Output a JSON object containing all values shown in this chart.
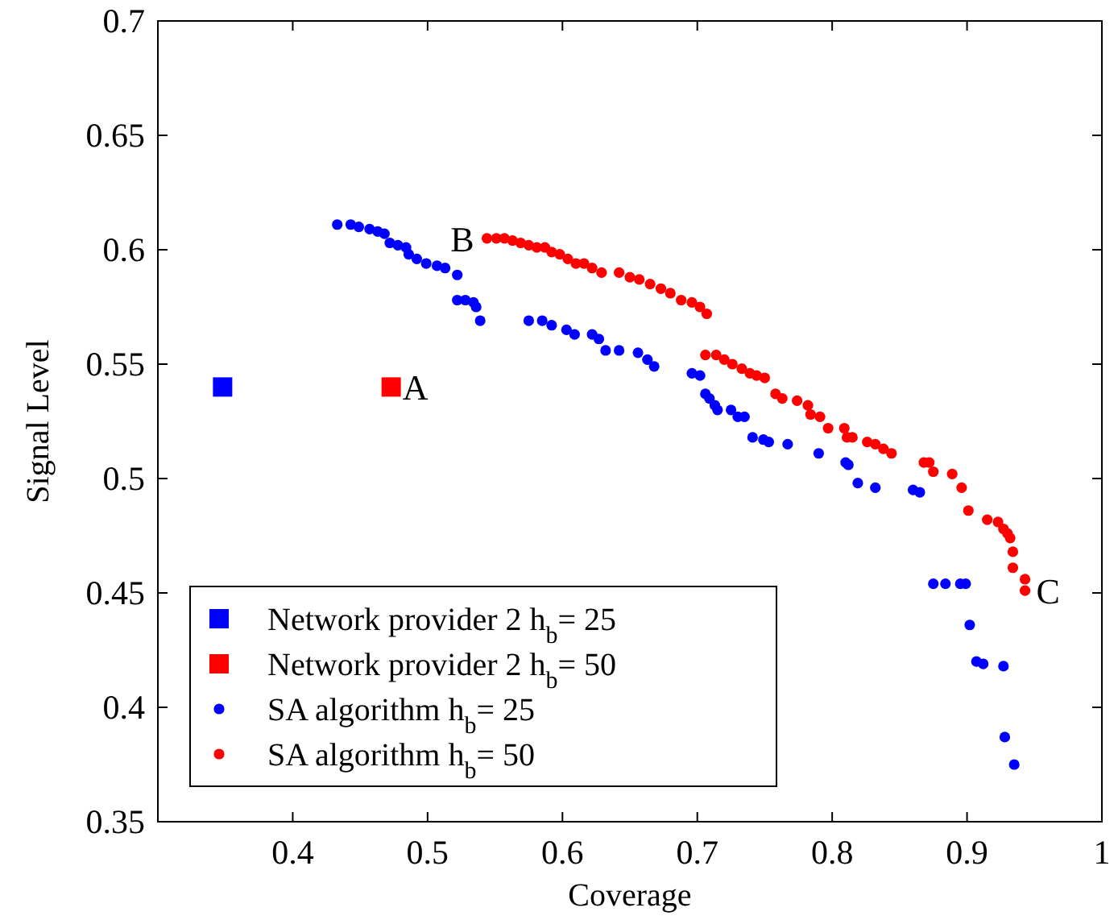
{
  "chart_data": {
    "type": "scatter",
    "xlabel": "Coverage",
    "ylabel": "Signal Level",
    "xlim": [
      0.3,
      1.0
    ],
    "ylim": [
      0.35,
      0.7
    ],
    "xticks": [
      0.4,
      0.5,
      0.6,
      0.7,
      0.8,
      0.9,
      1
    ],
    "yticks": [
      0.35,
      0.4,
      0.45,
      0.5,
      0.55,
      0.6,
      0.65,
      0.7
    ],
    "grid": false,
    "legend": "bottom left",
    "annotations": [
      {
        "text": "A",
        "x": 0.473,
        "y": 0.54
      },
      {
        "text": "B",
        "x": 0.544,
        "y": 0.605
      },
      {
        "text": "C",
        "x": 0.943,
        "y": 0.451
      }
    ],
    "series": [
      {
        "name": "Network provider 2 h$_{b}$= 25",
        "color": "#0000ff",
        "marker": "square",
        "x": [
          0.348
        ],
        "values": [
          0.54
        ]
      },
      {
        "name": "Network provider 2 h$_{b}$= 50",
        "color": "#ff0000",
        "marker": "square",
        "x": [
          0.473
        ],
        "values": [
          0.54
        ]
      },
      {
        "name": "SA algorithm h$_{b}$= 25",
        "color": "#0000ff",
        "marker": "circle",
        "x": [
          0.433,
          0.443,
          0.449,
          0.457,
          0.463,
          0.468,
          0.472,
          0.478,
          0.484,
          0.486,
          0.492,
          0.499,
          0.507,
          0.513,
          0.522,
          0.522,
          0.528,
          0.534,
          0.536,
          0.539,
          0.575,
          0.585,
          0.592,
          0.603,
          0.609,
          0.622,
          0.627,
          0.632,
          0.642,
          0.656,
          0.663,
          0.668,
          0.696,
          0.702,
          0.706,
          0.709,
          0.713,
          0.715,
          0.725,
          0.73,
          0.735,
          0.741,
          0.749,
          0.753,
          0.767,
          0.79,
          0.81,
          0.812,
          0.819,
          0.832,
          0.86,
          0.865,
          0.875,
          0.884,
          0.895,
          0.899,
          0.902,
          0.907,
          0.912,
          0.927,
          0.928,
          0.935
        ],
        "values": [
          0.611,
          0.611,
          0.61,
          0.609,
          0.608,
          0.607,
          0.603,
          0.602,
          0.601,
          0.598,
          0.596,
          0.594,
          0.593,
          0.592,
          0.589,
          0.578,
          0.578,
          0.577,
          0.575,
          0.569,
          0.569,
          0.569,
          0.567,
          0.565,
          0.563,
          0.563,
          0.561,
          0.556,
          0.556,
          0.555,
          0.552,
          0.549,
          0.546,
          0.545,
          0.537,
          0.535,
          0.532,
          0.53,
          0.53,
          0.527,
          0.527,
          0.518,
          0.517,
          0.516,
          0.515,
          0.511,
          0.507,
          0.506,
          0.498,
          0.496,
          0.495,
          0.494,
          0.454,
          0.454,
          0.454,
          0.454,
          0.436,
          0.42,
          0.419,
          0.418,
          0.387,
          0.375
        ]
      },
      {
        "name": "SA algorithm h$_{b}$= 50",
        "color": "#ff0000",
        "marker": "circle",
        "x": [
          0.544,
          0.551,
          0.557,
          0.563,
          0.569,
          0.575,
          0.581,
          0.587,
          0.592,
          0.598,
          0.604,
          0.61,
          0.616,
          0.622,
          0.629,
          0.642,
          0.65,
          0.657,
          0.665,
          0.673,
          0.68,
          0.688,
          0.696,
          0.702,
          0.707,
          0.706,
          0.714,
          0.72,
          0.726,
          0.733,
          0.739,
          0.744,
          0.75,
          0.758,
          0.763,
          0.774,
          0.782,
          0.784,
          0.791,
          0.797,
          0.809,
          0.811,
          0.815,
          0.826,
          0.832,
          0.838,
          0.844,
          0.868,
          0.872,
          0.875,
          0.889,
          0.896,
          0.901,
          0.915,
          0.923,
          0.927,
          0.93,
          0.932,
          0.934,
          0.934,
          0.943,
          0.943
        ],
        "values": [
          0.605,
          0.605,
          0.605,
          0.604,
          0.603,
          0.602,
          0.601,
          0.601,
          0.599,
          0.598,
          0.596,
          0.594,
          0.594,
          0.592,
          0.59,
          0.59,
          0.588,
          0.587,
          0.585,
          0.583,
          0.581,
          0.578,
          0.577,
          0.575,
          0.572,
          0.554,
          0.554,
          0.552,
          0.55,
          0.548,
          0.546,
          0.545,
          0.544,
          0.537,
          0.535,
          0.534,
          0.532,
          0.528,
          0.527,
          0.522,
          0.522,
          0.518,
          0.518,
          0.516,
          0.515,
          0.513,
          0.511,
          0.507,
          0.507,
          0.503,
          0.502,
          0.496,
          0.486,
          0.482,
          0.481,
          0.478,
          0.476,
          0.474,
          0.468,
          0.461,
          0.456,
          0.451
        ]
      }
    ]
  }
}
